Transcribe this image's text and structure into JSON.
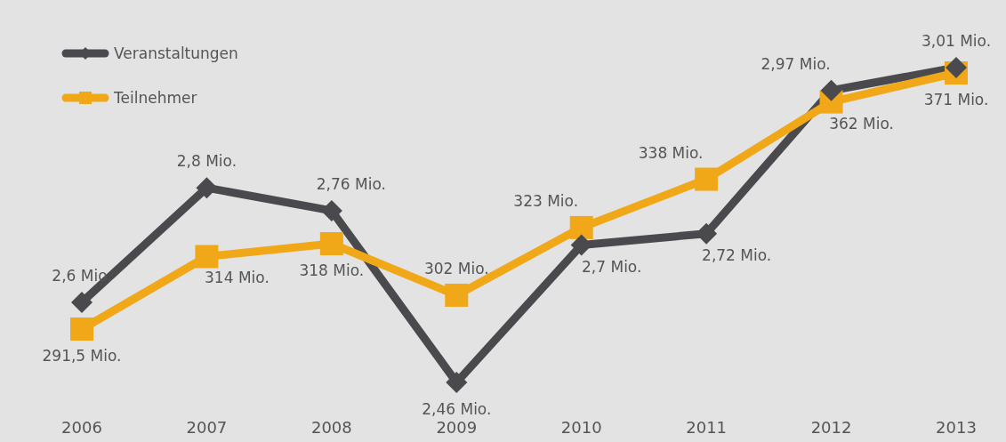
{
  "chart_data": {
    "type": "line",
    "categories": [
      "2006",
      "2007",
      "2008",
      "2009",
      "2010",
      "2011",
      "2012",
      "2013"
    ],
    "series": [
      {
        "name": "Veranstaltungen",
        "color": "#4a4a4e",
        "marker": "diamond",
        "values": [
          2.6,
          2.8,
          2.76,
          2.46,
          2.7,
          2.72,
          2.97,
          3.01
        ],
        "value_labels": [
          "2,6 Mio.",
          "2,8 Mio.",
          "2,76 Mio.",
          "2,46 Mio.",
          "2,7 Mio.",
          "2,72 Mio.",
          "2,97 Mio.",
          "3,01 Mio."
        ]
      },
      {
        "name": "Teilnehmer",
        "color": "#f0a818",
        "marker": "square",
        "axis": "y2",
        "values": [
          291.5,
          314,
          318,
          302,
          323,
          338,
          362,
          371
        ],
        "value_labels": [
          "291,5 Mio.",
          "314 Mio.",
          "318 Mio.",
          "302 Mio.",
          "323 Mio.",
          "338 Mio.",
          "362 Mio.",
          "371 Mio."
        ]
      }
    ],
    "tick_labels": "x",
    "legend": "top left"
  }
}
